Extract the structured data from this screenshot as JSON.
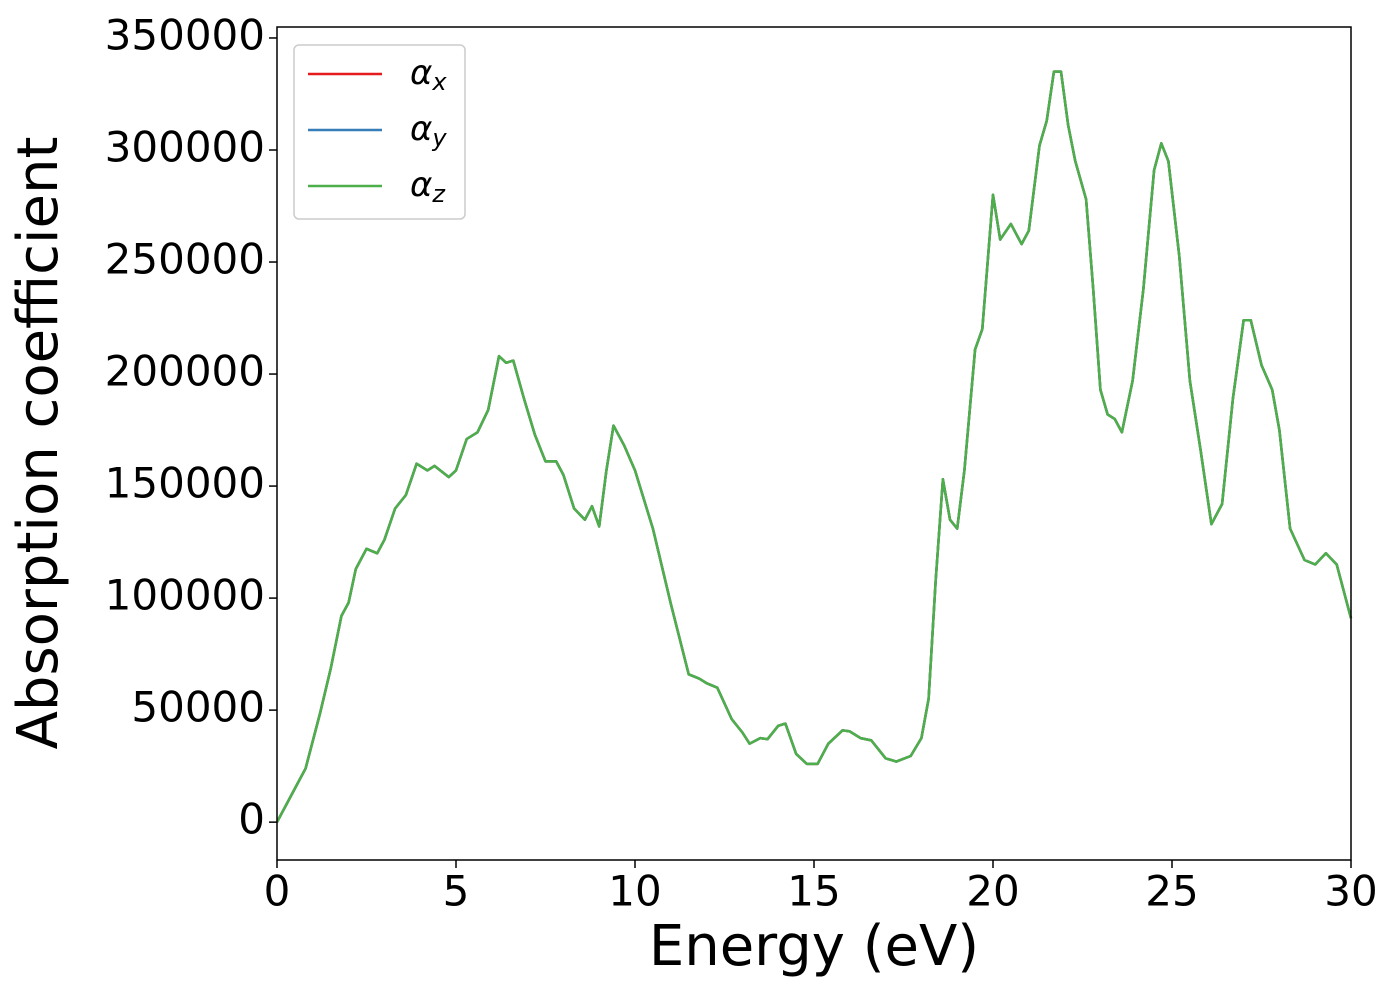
{
  "chart_data": {
    "type": "line",
    "xlabel": "Energy (eV)",
    "ylabel": "Absorption coefficient",
    "x": [
      0,
      0.5,
      0.8,
      1.2,
      1.5,
      1.8,
      2.0,
      2.2,
      2.5,
      2.8,
      3.0,
      3.3,
      3.6,
      3.9,
      4.2,
      4.4,
      4.8,
      5.0,
      5.3,
      5.6,
      5.9,
      6.2,
      6.4,
      6.6,
      6.9,
      7.2,
      7.5,
      7.8,
      8.0,
      8.3,
      8.6,
      8.8,
      9.0,
      9.2,
      9.4,
      9.7,
      10.0,
      10.5,
      11.0,
      11.5,
      11.8,
      12.0,
      12.3,
      12.7,
      13.0,
      13.2,
      13.5,
      13.7,
      14.0,
      14.2,
      14.5,
      14.8,
      15.1,
      15.4,
      15.8,
      16.0,
      16.3,
      16.6,
      17.0,
      17.3,
      17.7,
      18.0,
      18.2,
      18.4,
      18.6,
      18.8,
      19.0,
      19.2,
      19.5,
      19.7,
      20.0,
      20.2,
      20.5,
      20.8,
      21.0,
      21.3,
      21.5,
      21.7,
      21.9,
      22.1,
      22.3,
      22.6,
      22.8,
      23.0,
      23.2,
      23.4,
      23.6,
      23.9,
      24.2,
      24.5,
      24.7,
      24.9,
      25.2,
      25.5,
      25.8,
      26.1,
      26.4,
      26.7,
      27.0,
      27.2,
      27.5,
      27.8,
      28.0,
      28.3,
      28.7,
      29.0,
      29.3,
      29.6,
      30.0
    ],
    "series": [
      {
        "name": "αx",
        "color": "#e41a1c",
        "values": [
          0,
          15000,
          24000,
          48500,
          68500,
          92000,
          98000,
          113000,
          122000,
          120000,
          126000,
          140000,
          146000,
          160000,
          157000,
          159000,
          154000,
          157000,
          171000,
          174000,
          184000,
          208000,
          205000,
          206000,
          189000,
          173000,
          161000,
          161000,
          155000,
          140000,
          135000,
          141000,
          132000,
          157000,
          177000,
          168000,
          157000,
          131000,
          97500,
          66000,
          64000,
          62000,
          60000,
          46000,
          40000,
          35000,
          37500,
          37000,
          43000,
          44000,
          30500,
          26000,
          26000,
          35000,
          41000,
          40500,
          37500,
          36500,
          28500,
          27000,
          29500,
          37500,
          55000,
          108000,
          153000,
          135000,
          131000,
          157000,
          211000,
          220000,
          280000,
          260000,
          267000,
          258000,
          264000,
          302000,
          313000,
          335000,
          335000,
          311000,
          295000,
          278000,
          238000,
          193000,
          182000,
          180000,
          174000,
          197000,
          238000,
          291000,
          303000,
          295000,
          253000,
          197000,
          166000,
          133000,
          142000,
          189000,
          224000,
          224000,
          204000,
          193000,
          175000,
          131000,
          117000,
          115000,
          120000,
          115000,
          91000
        ]
      },
      {
        "name": "αy",
        "color": "#377eb8",
        "values": [
          0,
          15000,
          24000,
          48500,
          68500,
          92000,
          98000,
          113000,
          122000,
          120000,
          126000,
          140000,
          146000,
          160000,
          157000,
          159000,
          154000,
          157000,
          171000,
          174000,
          184000,
          208000,
          205000,
          206000,
          189000,
          173000,
          161000,
          161000,
          155000,
          140000,
          135000,
          141000,
          132000,
          157000,
          177000,
          168000,
          157000,
          131000,
          97500,
          66000,
          64000,
          62000,
          60000,
          46000,
          40000,
          35000,
          37500,
          37000,
          43000,
          44000,
          30500,
          26000,
          26000,
          35000,
          41000,
          40500,
          37500,
          36500,
          28500,
          27000,
          29500,
          37500,
          55000,
          108000,
          153000,
          135000,
          131000,
          157000,
          211000,
          220000,
          280000,
          260000,
          267000,
          258000,
          264000,
          302000,
          313000,
          335000,
          335000,
          311000,
          295000,
          278000,
          238000,
          193000,
          182000,
          180000,
          174000,
          197000,
          238000,
          291000,
          303000,
          295000,
          253000,
          197000,
          166000,
          133000,
          142000,
          189000,
          224000,
          224000,
          204000,
          193000,
          175000,
          131000,
          117000,
          115000,
          120000,
          115000,
          91000
        ]
      },
      {
        "name": "αz",
        "color": "#4daf4a",
        "values": [
          0,
          15000,
          24000,
          48500,
          68500,
          92000,
          98000,
          113000,
          122000,
          120000,
          126000,
          140000,
          146000,
          160000,
          157000,
          159000,
          154000,
          157000,
          171000,
          174000,
          184000,
          208000,
          205000,
          206000,
          189000,
          173000,
          161000,
          161000,
          155000,
          140000,
          135000,
          141000,
          132000,
          157000,
          177000,
          168000,
          157000,
          131000,
          97500,
          66000,
          64000,
          62000,
          60000,
          46000,
          40000,
          35000,
          37500,
          37000,
          43000,
          44000,
          30500,
          26000,
          26000,
          35000,
          41000,
          40500,
          37500,
          36500,
          28500,
          27000,
          29500,
          37500,
          55000,
          108000,
          153000,
          135000,
          131000,
          157000,
          211000,
          220000,
          280000,
          260000,
          267000,
          258000,
          264000,
          302000,
          313000,
          335000,
          335000,
          311000,
          295000,
          278000,
          238000,
          193000,
          182000,
          180000,
          174000,
          197000,
          238000,
          291000,
          303000,
          295000,
          253000,
          197000,
          166000,
          133000,
          142000,
          189000,
          224000,
          224000,
          204000,
          193000,
          175000,
          131000,
          117000,
          115000,
          120000,
          115000,
          91000
        ]
      }
    ],
    "xlim": [
      0,
      30
    ],
    "xticks": [
      0,
      5,
      10,
      15,
      20,
      25,
      30
    ],
    "ylim": [
      -16900,
      354900
    ],
    "yticks": [
      0,
      50000,
      100000,
      150000,
      200000,
      250000,
      300000,
      350000
    ],
    "legend": "upper left",
    "grid": false
  }
}
